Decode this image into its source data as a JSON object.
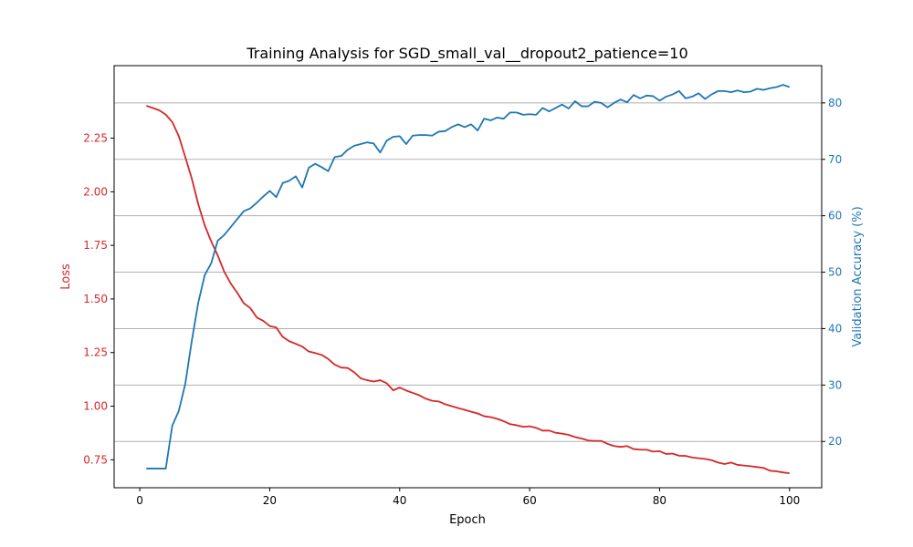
{
  "chart_data": {
    "type": "line",
    "title": "Training Analysis for SGD_small_val__dropout2_patience=10",
    "xlabel": "Epoch",
    "ylabel_left": "Loss",
    "ylabel_right": "Validation Accuracy (%)",
    "xlim": [
      -3.95,
      104.95
    ],
    "ylim_left": [
      0.6195,
      2.5883
    ],
    "ylim_right": [
      11.8,
      86.6
    ],
    "x_ticks": [
      0,
      20,
      40,
      60,
      80,
      100
    ],
    "y_left_ticks": [
      0.75,
      1.0,
      1.25,
      1.5,
      1.75,
      2.0,
      2.25
    ],
    "y_left_tick_labels": [
      "0.75",
      "1.00",
      "1.25",
      "1.50",
      "1.75",
      "2.00",
      "2.25"
    ],
    "y_right_ticks": [
      20,
      30,
      40,
      50,
      60,
      70,
      80
    ],
    "grid": "horizontal lines at validation accuracy ticks",
    "colors": {
      "loss": "#d62728",
      "accuracy": "#1f77b4",
      "grid": "#b0b0b0",
      "axis": "#000000"
    },
    "series": [
      {
        "axis": "left",
        "x_start": 1,
        "values": [
          2.401,
          2.391,
          2.38,
          2.36,
          2.325,
          2.26,
          2.162,
          2.062,
          1.942,
          1.843,
          1.768,
          1.703,
          1.627,
          1.572,
          1.529,
          1.48,
          1.458,
          1.414,
          1.398,
          1.374,
          1.367,
          1.323,
          1.303,
          1.291,
          1.278,
          1.255,
          1.248,
          1.239,
          1.22,
          1.194,
          1.18,
          1.178,
          1.158,
          1.13,
          1.121,
          1.115,
          1.121,
          1.107,
          1.074,
          1.087,
          1.073,
          1.062,
          1.051,
          1.035,
          1.025,
          1.022,
          1.009,
          1.0,
          0.991,
          0.983,
          0.974,
          0.966,
          0.953,
          0.949,
          0.941,
          0.93,
          0.916,
          0.911,
          0.904,
          0.906,
          0.899,
          0.886,
          0.886,
          0.876,
          0.872,
          0.866,
          0.856,
          0.849,
          0.84,
          0.838,
          0.838,
          0.824,
          0.814,
          0.81,
          0.814,
          0.8,
          0.797,
          0.797,
          0.788,
          0.79,
          0.777,
          0.779,
          0.769,
          0.768,
          0.761,
          0.757,
          0.754,
          0.748,
          0.737,
          0.73,
          0.737,
          0.726,
          0.723,
          0.72,
          0.716,
          0.712,
          0.699,
          0.696,
          0.691,
          0.687
        ]
      },
      {
        "axis": "right",
        "x_start": 1,
        "values": [
          15.2,
          15.2,
          15.2,
          15.2,
          22.8,
          25.4,
          30.2,
          37.8,
          44.6,
          49.5,
          51.6,
          55.6,
          56.6,
          58.0,
          59.4,
          60.8,
          61.3,
          62.3,
          63.4,
          64.4,
          63.3,
          65.8,
          66.2,
          67.0,
          65.0,
          68.5,
          69.2,
          68.6,
          67.9,
          70.4,
          70.6,
          71.7,
          72.4,
          72.7,
          73.0,
          72.8,
          71.2,
          73.3,
          74.0,
          74.1,
          72.7,
          74.2,
          74.3,
          74.3,
          74.2,
          74.9,
          75.0,
          75.7,
          76.2,
          75.7,
          76.2,
          75.1,
          77.2,
          76.9,
          77.4,
          77.2,
          78.3,
          78.3,
          77.9,
          78.0,
          77.9,
          79.1,
          78.5,
          79.1,
          79.7,
          79.0,
          80.3,
          79.4,
          79.4,
          80.2,
          80.0,
          79.2,
          80.0,
          80.6,
          80.1,
          81.4,
          80.8,
          81.3,
          81.2,
          80.4,
          81.1,
          81.5,
          82.1,
          80.8,
          81.1,
          81.7,
          80.7,
          81.5,
          82.1,
          82.1,
          81.9,
          82.2,
          81.9,
          82.0,
          82.5,
          82.3,
          82.6,
          82.8,
          83.2,
          82.8
        ]
      }
    ]
  }
}
